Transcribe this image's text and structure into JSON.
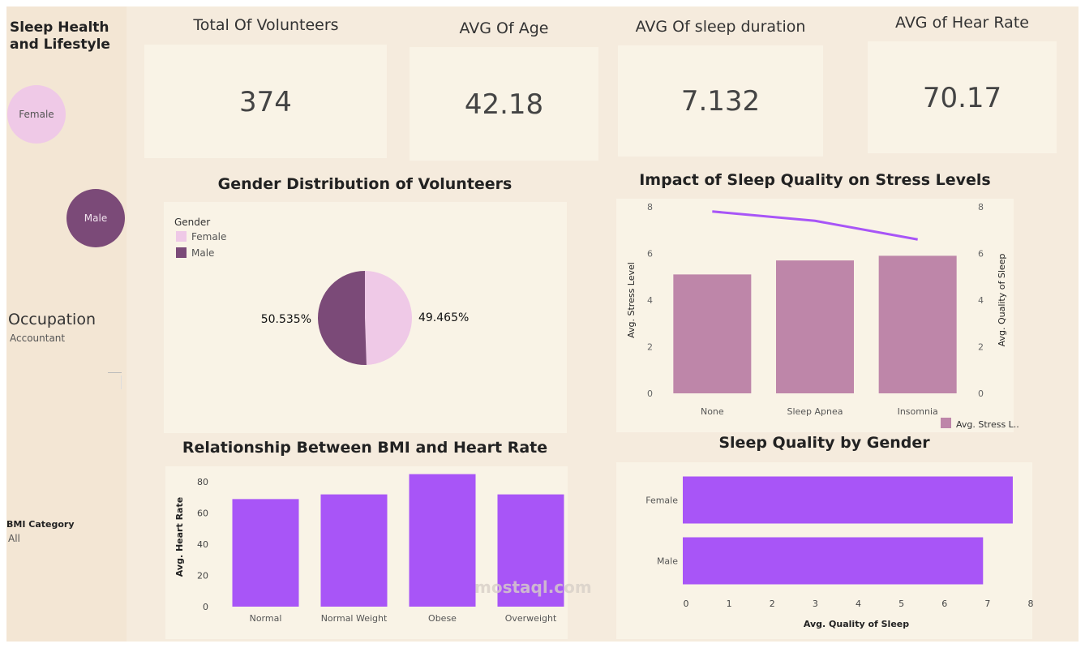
{
  "sidebar": {
    "title_line1": "Sleep Health",
    "title_line2": "and Lifestyle",
    "gender_filter": [
      {
        "label": "Female",
        "color": "#efc9e7"
      },
      {
        "label": "Male",
        "color": "#7b4a78"
      }
    ],
    "occupation_label": "Occupation",
    "occupation_value": "Accountant",
    "bmi_label": "BMI Category",
    "bmi_value": "All"
  },
  "kpis": [
    {
      "title": "Total Of Volunteers",
      "value": "374"
    },
    {
      "title": "AVG Of Age",
      "value": "42.18"
    },
    {
      "title": "AVG Of sleep duration",
      "value": "7.132"
    },
    {
      "title": "AVG of Hear Rate",
      "value": "70.17"
    }
  ],
  "watermark": "mostaql.com",
  "chart_data": [
    {
      "type": "pie",
      "title": "Gender Distribution of Volunteers",
      "legend_title": "Gender",
      "categories": [
        "Female",
        "Male"
      ],
      "values": [
        49.465,
        50.535
      ],
      "labels": [
        "49.465%",
        "50.535%"
      ],
      "colors": [
        "#efc9e7",
        "#7b4a78"
      ],
      "legend": "top-left"
    },
    {
      "type": "bar",
      "title": "Impact of Sleep Quality on Stress Levels",
      "categories": [
        "None",
        "Sleep Apnea",
        "Insomnia"
      ],
      "series": [
        {
          "name": "Avg. Stress L..",
          "type": "bar",
          "values": [
            5.1,
            5.7,
            5.9
          ],
          "color": "#be86a9"
        },
        {
          "type": "line",
          "values": [
            7.8,
            7.4,
            6.6
          ],
          "color": "#a855f7"
        }
      ],
      "ylabel": "Avg. Stress Level",
      "y2label": "Avg. Quality of Sleep",
      "ylim": [
        0,
        8
      ],
      "y2lim": [
        0,
        8
      ],
      "yticks": [
        0,
        2,
        4,
        6,
        8
      ],
      "legend": "bottom-right"
    },
    {
      "type": "bar",
      "title": "Relationship Between BMI and Heart Rate",
      "categories": [
        "Normal",
        "Normal Weight",
        "Obese",
        "Overweight"
      ],
      "values": [
        69,
        72,
        85,
        72
      ],
      "ylabel": "Avg. Heart Rate",
      "ylim": [
        0,
        90
      ],
      "yticks": [
        0,
        20,
        40,
        60,
        80
      ],
      "color": "#a855f7"
    },
    {
      "type": "bar",
      "orientation": "horizontal",
      "title": "Sleep Quality by Gender",
      "categories": [
        "Female",
        "Male"
      ],
      "values": [
        7.66,
        6.97
      ],
      "xlabel": "Avg. Quality of Sleep",
      "xlim": [
        0,
        8
      ],
      "xticks": [
        0,
        1,
        2,
        3,
        4,
        5,
        6,
        7,
        8
      ],
      "color": "#a855f7"
    }
  ]
}
